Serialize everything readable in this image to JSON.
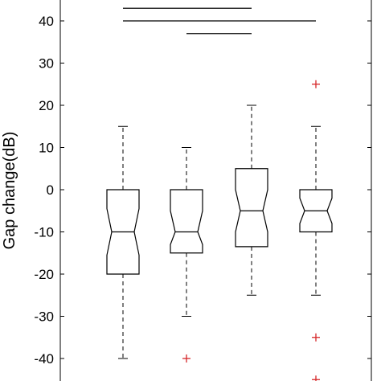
{
  "chart_data": {
    "type": "box",
    "title": "",
    "xlabel": "",
    "ylabel": "Gap change(dB)",
    "ylim": [
      -45,
      45
    ],
    "yticks": [
      40,
      30,
      20,
      10,
      0,
      -10,
      -20,
      -30,
      -40
    ],
    "ytick_labels": [
      "40",
      "30",
      "20",
      "10",
      "0",
      "-10",
      "-20",
      "-30",
      "-40"
    ],
    "notched": true,
    "colors": {
      "box": "#000000",
      "outlier": "#d62728",
      "axis": "#000000"
    },
    "boxes": [
      {
        "whisker_low": -40,
        "q1": -20,
        "median": -10,
        "q3": 0,
        "whisker_high": 15,
        "notch_low": -15.5,
        "notch_high": -4.5,
        "outliers": []
      },
      {
        "whisker_low": -30,
        "q1": -15,
        "median": -10,
        "q3": 0,
        "whisker_high": 10,
        "notch_low": -13,
        "notch_high": -5,
        "outliers": [
          -40
        ]
      },
      {
        "whisker_low": -25,
        "q1": -13.5,
        "median": -5,
        "q3": 5,
        "whisker_high": 20,
        "notch_low": -10,
        "notch_high": 0,
        "outliers": []
      },
      {
        "whisker_low": -25,
        "q1": -10,
        "median": -5,
        "q3": 0,
        "whisker_high": 15,
        "notch_low": -8,
        "notch_high": -2,
        "outliers": [
          25,
          -35,
          -45
        ]
      }
    ],
    "significance_bars": [
      {
        "from": 1,
        "to": 3,
        "y": 43
      },
      {
        "from": 1,
        "to": 4,
        "y": 40
      },
      {
        "from": 2,
        "to": 3,
        "y": 37
      }
    ]
  }
}
